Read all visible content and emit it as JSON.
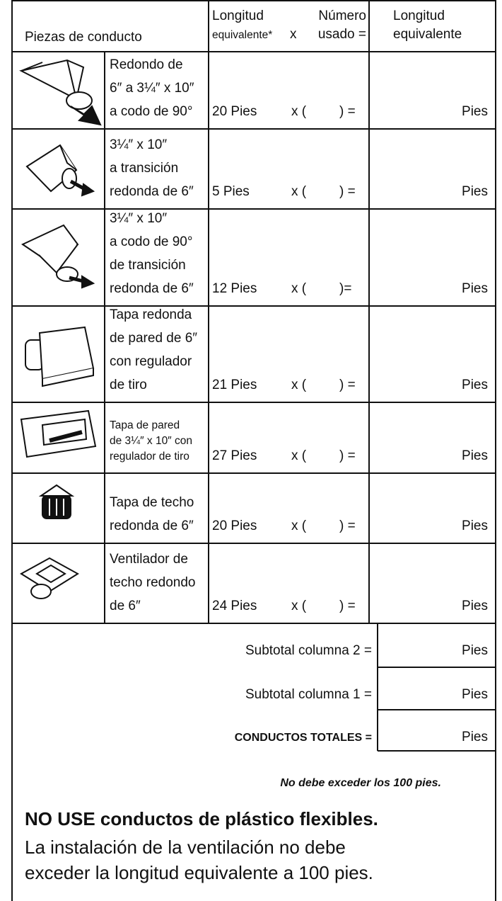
{
  "header": {
    "pieces": "Piezas de conducto",
    "length_top": "Longitud",
    "number_top": "Número",
    "length_bottom": "equivalente*",
    "times": "x",
    "number_bottom": "usado =",
    "total_top": "Longitud",
    "total_bottom": "equivalente"
  },
  "rows": [
    {
      "description": [
        "Redondo de",
        "6″ a 3¼″ x 10″",
        "a codo de 90°"
      ],
      "length": "20 Pies",
      "open": "x (",
      "close": ") =",
      "unit": "Pies"
    },
    {
      "description": [
        "3¼″ x 10″",
        "a transición",
        "redonda de 6″"
      ],
      "length": "5 Pies",
      "open": "x (",
      "close": ") =",
      "unit": "Pies"
    },
    {
      "description": [
        "3¼″ x 10″",
        "a codo de 90°",
        "de transición",
        "redonda de 6″"
      ],
      "length": "12 Pies",
      "open": "x (",
      "close": ")=",
      "unit": "Pies"
    },
    {
      "description": [
        "Tapa redonda",
        "de pared de 6″",
        "con regulador",
        "de tiro"
      ],
      "length": "21 Pies",
      "open": "x (",
      "close": ") =",
      "unit": "Pies"
    },
    {
      "description": [
        "Tapa de pared",
        "de 3¼″ x 10″ con",
        "regulador de tiro"
      ],
      "length": "27 Pies",
      "open": "x (",
      "close": ") =",
      "unit": "Pies"
    },
    {
      "description": [
        "Tapa de techo",
        "redonda de 6″"
      ],
      "length": "20 Pies",
      "open": "x (",
      "close": ") =",
      "unit": "Pies"
    },
    {
      "description": [
        "Ventilador de",
        "techo redondo",
        "de 6″"
      ],
      "length": "24 Pies",
      "open": "x (",
      "close": ") =",
      "unit": "Pies"
    }
  ],
  "totals": [
    {
      "label": "Subtotal columna 2 =",
      "unit": "Pies"
    },
    {
      "label": "Subtotal columna 1 =",
      "unit": "Pies"
    },
    {
      "label": "CONDUCTOS TOTALES =",
      "unit": "Pies"
    }
  ],
  "note": "No debe exceder los 100 pies.",
  "warning": "NO USE conductos de plástico flexibles.",
  "instructions": [
    "La instalación de la ventilación no debe",
    "exceder la longitud equivalente a 100 pies."
  ]
}
